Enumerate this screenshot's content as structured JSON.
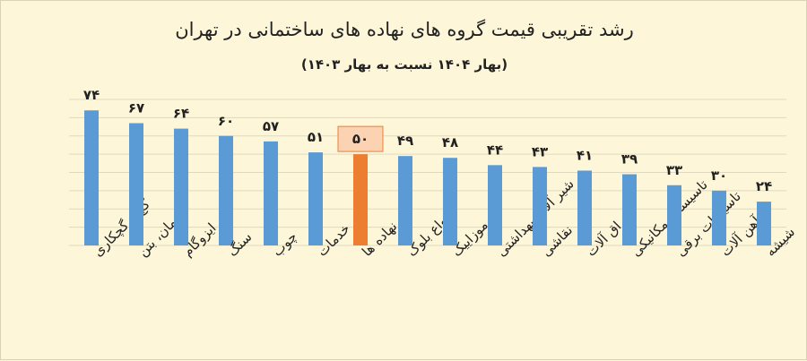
{
  "colors": {
    "bar": "#5b9bd5",
    "highlight_bar": "#ed7d31",
    "highlight_box": "#fbd3b3",
    "highlight_border": "#ed7d31"
  },
  "chart_data": {
    "type": "bar",
    "title": "رشد تقریبی قیمت گروه های نهاده های ساختمانی در تهران",
    "subtitle": "(بهار ۱۴۰۴ نسبت به بهار ۱۴۰۳)",
    "categories": [
      "گچ و گچکاری",
      "سیمان، بتن",
      "ایزوگام",
      "سنگ",
      "چوب",
      "خدمات",
      "کل نهاده ها",
      "انواع بلوک",
      "موزاییک",
      "شیر آلات بهداشتی",
      "نقاشی",
      "یراق آلات",
      "تاسیسات مکانیکی",
      "تاسیسات برقی",
      "آهن آلات",
      "شیشه"
    ],
    "values": [
      74,
      67,
      64,
      60,
      57,
      51,
      50,
      49,
      48,
      44,
      43,
      41,
      39,
      33,
      30,
      24
    ],
    "value_labels": [
      "۷۴",
      "۶۷",
      "۶۴",
      "۶۰",
      "۵۷",
      "۵۱",
      "۵۰",
      "۴۹",
      "۴۸",
      "۴۴",
      "۴۳",
      "۴۱",
      "۳۹",
      "۳۳",
      "۳۰",
      "۲۴"
    ],
    "highlight_index": 6,
    "ylim": [
      0,
      80
    ],
    "grid": true,
    "legend": "none"
  }
}
